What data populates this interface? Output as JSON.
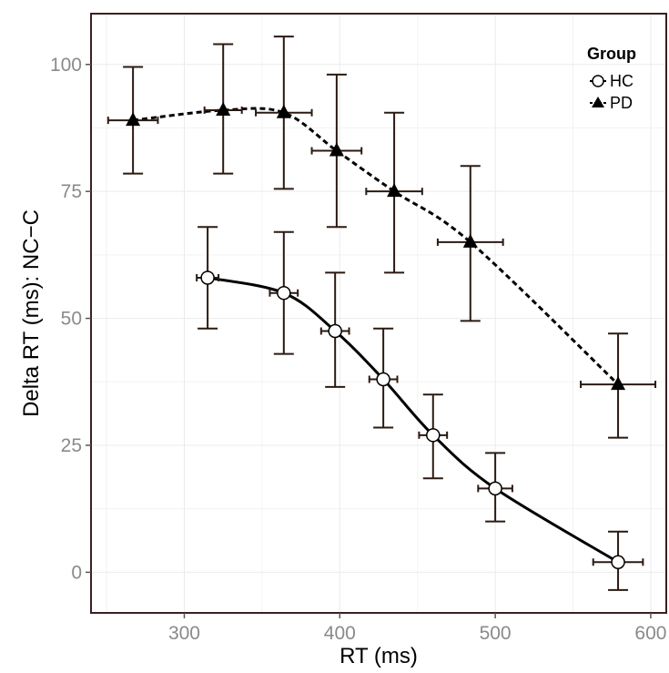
{
  "chart_data": {
    "type": "line",
    "xlabel": "RT (ms)",
    "ylabel": "Delta RT (ms): NC−C",
    "xlim": [
      240,
      610
    ],
    "ylim": [
      -8,
      110
    ],
    "x_ticks": [
      300,
      400,
      500,
      600
    ],
    "y_ticks": [
      0,
      25,
      50,
      75,
      100
    ],
    "x_tick_labels": [
      "300",
      "400",
      "500",
      "600"
    ],
    "y_tick_labels": [
      "0",
      "25",
      "50",
      "75",
      "100"
    ],
    "grid": true,
    "legend": {
      "title": "Group",
      "position": "top-right"
    },
    "series": [
      {
        "name": "HC",
        "marker": "circle",
        "line_style": "solid",
        "points": [
          {
            "x": 315,
            "y": 58,
            "x_err": 7,
            "y_lo": 48,
            "y_hi": 68
          },
          {
            "x": 364,
            "y": 55,
            "x_err": 9,
            "y_lo": 43,
            "y_hi": 67
          },
          {
            "x": 397,
            "y": 47.5,
            "x_err": 9,
            "y_lo": 36.5,
            "y_hi": 59
          },
          {
            "x": 428,
            "y": 38,
            "x_err": 9,
            "y_lo": 28.5,
            "y_hi": 48
          },
          {
            "x": 460,
            "y": 27,
            "x_err": 9,
            "y_lo": 18.5,
            "y_hi": 35
          },
          {
            "x": 500,
            "y": 16.5,
            "x_err": 11,
            "y_lo": 10,
            "y_hi": 23.5
          },
          {
            "x": 579,
            "y": 2,
            "x_err": 16,
            "y_lo": -3.5,
            "y_hi": 8
          }
        ]
      },
      {
        "name": "PD",
        "marker": "triangle",
        "line_style": "dashed",
        "points": [
          {
            "x": 267,
            "y": 89,
            "x_err": 16,
            "y_lo": 78.5,
            "y_hi": 99.5
          },
          {
            "x": 325,
            "y": 91,
            "x_err": 12,
            "y_lo": 78.5,
            "y_hi": 104
          },
          {
            "x": 364,
            "y": 90.5,
            "x_err": 18,
            "y_lo": 75.5,
            "y_hi": 105.5
          },
          {
            "x": 398,
            "y": 83,
            "x_err": 16,
            "y_lo": 68,
            "y_hi": 98
          },
          {
            "x": 435,
            "y": 75,
            "x_err": 18,
            "y_lo": 59,
            "y_hi": 90.5
          },
          {
            "x": 484,
            "y": 65,
            "x_err": 21,
            "y_lo": 49.5,
            "y_hi": 80
          },
          {
            "x": 579,
            "y": 37,
            "x_err": 24,
            "y_lo": 26.5,
            "y_hi": 47
          }
        ]
      }
    ]
  }
}
